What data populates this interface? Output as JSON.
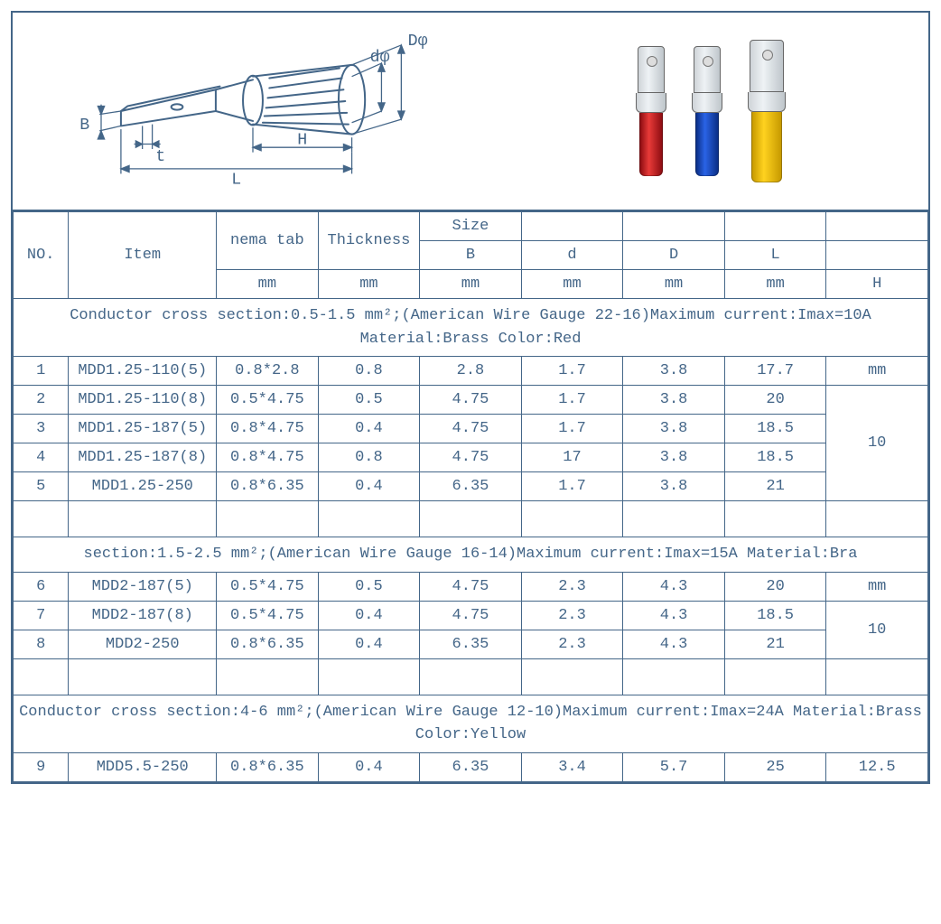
{
  "colors": {
    "border": "#446688",
    "text": "#446688",
    "terminal_red": "#e83a38",
    "terminal_blue": "#2a63e6",
    "terminal_yellow": "#ffd21f"
  },
  "diagram": {
    "labels": {
      "Dphi": "Dφ",
      "dphi": "dφ",
      "H": "H",
      "L": "L",
      "B": "B",
      "t": "t"
    }
  },
  "headers": {
    "no": "NO.",
    "item": "Item",
    "nema": "nema tab",
    "thickness": "Thickness",
    "size": "Size",
    "B": "B",
    "d": "d",
    "D": "D",
    "L": "L",
    "H": "H",
    "unit": "mm"
  },
  "sections": [
    {
      "note": "Conductor cross section:0.5-1.5 mm²;(American Wire Gauge 22-16)Maximum current:Imax=10A Material:Brass   Color:Red",
      "h_first": "mm",
      "h_rest": "10",
      "rows": [
        {
          "no": "1",
          "item": "MDD1.25-110(5)",
          "nema": "0.8*2.8",
          "thk": "0.8",
          "B": "2.8",
          "d": "1.7",
          "D": "3.8",
          "L": "17.7"
        },
        {
          "no": "2",
          "item": "MDD1.25-110(8)",
          "nema": "0.5*4.75",
          "thk": "0.5",
          "B": "4.75",
          "d": "1.7",
          "D": "3.8",
          "L": "20"
        },
        {
          "no": "3",
          "item": "MDD1.25-187(5)",
          "nema": "0.8*4.75",
          "thk": "0.4",
          "B": "4.75",
          "d": "1.7",
          "D": "3.8",
          "L": "18.5"
        },
        {
          "no": "4",
          "item": "MDD1.25-187(8)",
          "nema": "0.8*4.75",
          "thk": "0.8",
          "B": "4.75",
          "d": "17",
          "D": "3.8",
          "L": "18.5"
        },
        {
          "no": "5",
          "item": "MDD1.25-250",
          "nema": "0.8*6.35",
          "thk": "0.4",
          "B": "6.35",
          "d": "1.7",
          "D": "3.8",
          "L": "21"
        }
      ]
    },
    {
      "note": "section:1.5-2.5 mm²;(American Wire Gauge 16-14)Maximum current:Imax=15A Material:Bra",
      "h_first": "mm",
      "h_rest": "10",
      "rows": [
        {
          "no": "6",
          "item": "MDD2-187(5)",
          "nema": "0.5*4.75",
          "thk": "0.5",
          "B": "4.75",
          "d": "2.3",
          "D": "4.3",
          "L": "20"
        },
        {
          "no": "7",
          "item": "MDD2-187(8)",
          "nema": "0.5*4.75",
          "thk": "0.4",
          "B": "4.75",
          "d": "2.3",
          "D": "4.3",
          "L": "18.5"
        },
        {
          "no": "8",
          "item": "MDD2-250",
          "nema": "0.8*6.35",
          "thk": "0.4",
          "B": "6.35",
          "d": "2.3",
          "D": "4.3",
          "L": "21"
        }
      ]
    },
    {
      "note": "Conductor cross section:4-6 mm²;(American Wire Gauge 12-10)Maximum current:Imax=24A Material:Brass   Color:Yellow",
      "h_first": "12.5",
      "h_rest": "",
      "rows": [
        {
          "no": "9",
          "item": "MDD5.5-250",
          "nema": "0.8*6.35",
          "thk": "0.4",
          "B": "6.35",
          "d": "3.4",
          "D": "5.7",
          "L": "25"
        }
      ]
    }
  ]
}
